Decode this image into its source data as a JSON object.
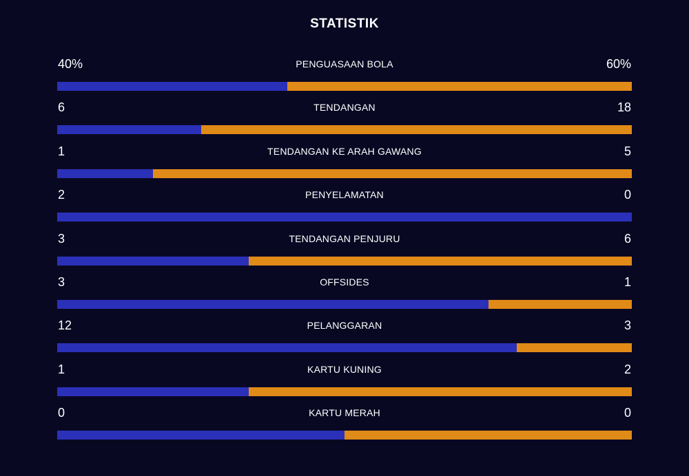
{
  "title": "STATISTIK",
  "colors": {
    "background": "#090823",
    "home": "#2b30b9",
    "away": "#e08a17",
    "text": "#ffffff"
  },
  "stats": [
    {
      "label": "PENGUASAAN BOLA",
      "home": "40%",
      "away": "60%",
      "home_value": 40,
      "away_value": 60
    },
    {
      "label": "TENDANGAN",
      "home": "6",
      "away": "18",
      "home_value": 6,
      "away_value": 18
    },
    {
      "label": "TENDANGAN KE ARAH GAWANG",
      "home": "1",
      "away": "5",
      "home_value": 1,
      "away_value": 5
    },
    {
      "label": "PENYELAMATAN",
      "home": "2",
      "away": "0",
      "home_value": 2,
      "away_value": 0
    },
    {
      "label": "TENDANGAN PENJURU",
      "home": "3",
      "away": "6",
      "home_value": 3,
      "away_value": 6
    },
    {
      "label": "OFFSIDES",
      "home": "3",
      "away": "1",
      "home_value": 3,
      "away_value": 1
    },
    {
      "label": "PELANGGARAN",
      "home": "12",
      "away": "3",
      "home_value": 12,
      "away_value": 3
    },
    {
      "label": "KARTU KUNING",
      "home": "1",
      "away": "2",
      "home_value": 1,
      "away_value": 2
    },
    {
      "label": "KARTU MERAH",
      "home": "0",
      "away": "0",
      "home_value": 0,
      "away_value": 0
    }
  ]
}
